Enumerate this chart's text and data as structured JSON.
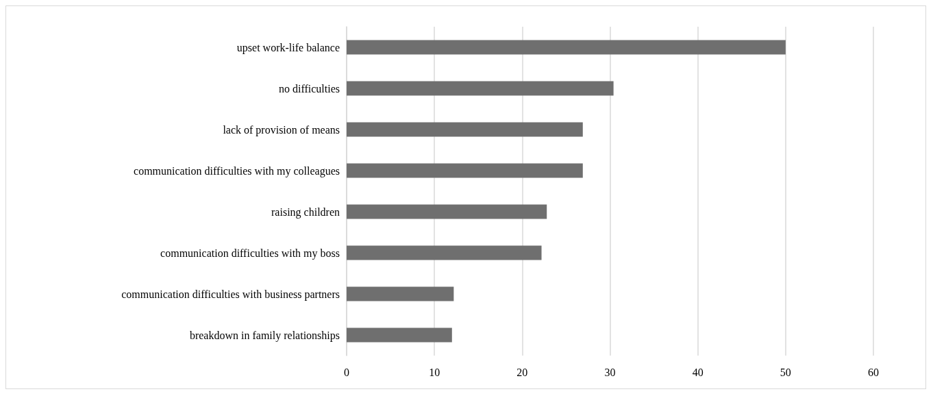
{
  "chart_data": {
    "type": "bar",
    "orientation": "horizontal",
    "categories": [
      "upset work-life balance",
      "no difficulties",
      "lack of provision of means",
      "communication difficulties with my colleagues",
      "raising children",
      "communication difficulties with my boss",
      "communication difficulties with business partners",
      "breakdown in family relationships"
    ],
    "values": [
      50,
      30.4,
      26.9,
      26.9,
      22.8,
      22.2,
      12.2,
      12.0
    ],
    "color": "#6f6f6f",
    "xlim": [
      0,
      60
    ],
    "xticks": [
      0,
      10,
      20,
      30,
      40,
      50,
      60
    ],
    "grid": "x"
  }
}
